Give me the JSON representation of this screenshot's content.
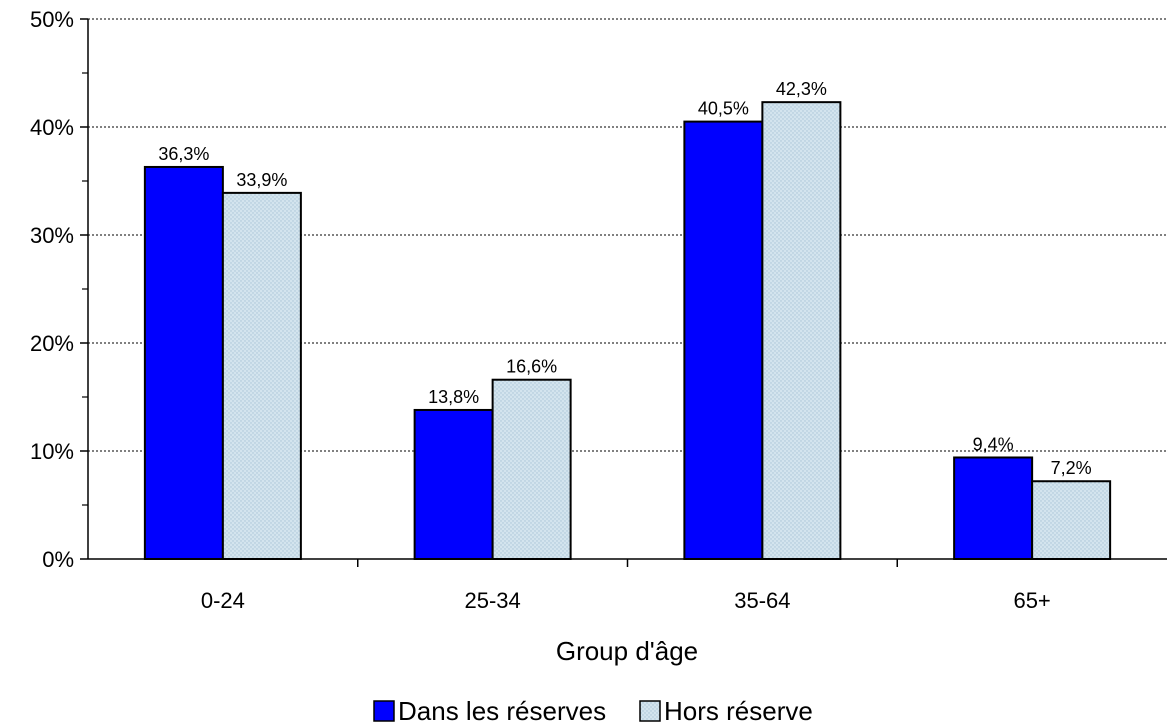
{
  "chart_data": {
    "type": "bar",
    "xlabel": "Group d'âge",
    "ylabel": "",
    "categories": [
      "0-24",
      "25-34",
      "35-64",
      "65+"
    ],
    "series": [
      {
        "name": "Dans les réserves",
        "values": [
          36.3,
          13.8,
          40.5,
          9.4
        ],
        "labels": [
          "36,3%",
          "13,8%",
          "40,5%",
          "9,4%"
        ],
        "color": "#0000ff"
      },
      {
        "name": "Hors réserve",
        "values": [
          33.9,
          16.6,
          42.3,
          7.2
        ],
        "labels": [
          "33,9%",
          "16,6%",
          "42,3%",
          "7,2%"
        ],
        "color": "#c8dcea"
      }
    ],
    "ylim": [
      0,
      50
    ],
    "yticks": [
      0,
      10,
      20,
      30,
      40,
      50
    ],
    "ytick_labels": [
      "0%",
      "10%",
      "20%",
      "30%",
      "40%",
      "50%"
    ],
    "grid": "horizontal dashed",
    "legend": "bottom-center",
    "bar_border_color": "#000000"
  }
}
